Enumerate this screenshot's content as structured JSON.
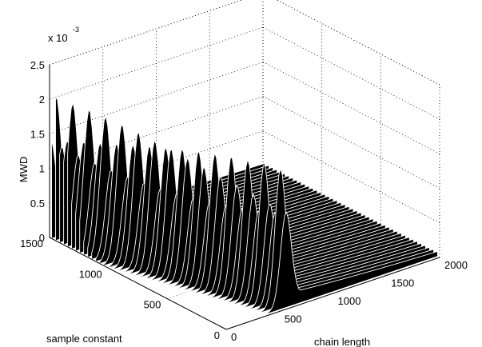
{
  "chart_data": {
    "type": "surface",
    "title": "",
    "zlabel": "MWD",
    "xlabel": "chain length",
    "ylabel": "sample constant",
    "z_multiplier": "x 10",
    "z_exponent": "-3",
    "xlim": [
      0,
      2000
    ],
    "ylim": [
      0,
      1500
    ],
    "zlim": [
      0,
      0.0025
    ],
    "x_ticks": [
      "0",
      "500",
      "1000",
      "1500",
      "2000"
    ],
    "y_ticks": [
      "0",
      "500",
      "1000",
      "1500"
    ],
    "z_ticks": [
      "0",
      "0.5",
      "1",
      "1.5",
      "2",
      "2.5"
    ],
    "grid": true,
    "surface_color": "#000000",
    "mesh_color": "#ffffff",
    "peaks": [
      {
        "sample_constant": 1450,
        "chain_length": 5,
        "mwd": 0.00197
      },
      {
        "sample_constant": 1350,
        "chain_length": 45,
        "mwd": 0.00191
      },
      {
        "sample_constant": 1250,
        "chain_length": 85,
        "mwd": 0.00185
      },
      {
        "sample_constant": 1150,
        "chain_length": 125,
        "mwd": 0.00179
      },
      {
        "sample_constant": 1050,
        "chain_length": 165,
        "mwd": 0.00173
      },
      {
        "sample_constant": 950,
        "chain_length": 205,
        "mwd": 0.00167
      },
      {
        "sample_constant": 850,
        "chain_length": 245,
        "mwd": 0.00161
      },
      {
        "sample_constant": 750,
        "chain_length": 285,
        "mwd": 0.00155
      },
      {
        "sample_constant": 650,
        "chain_length": 325,
        "mwd": 0.00149
      },
      {
        "sample_constant": 550,
        "chain_length": 365,
        "mwd": 0.00143
      },
      {
        "sample_constant": 450,
        "chain_length": 405,
        "mwd": 0.00137
      },
      {
        "sample_constant": 350,
        "chain_length": 445,
        "mwd": 0.00131
      }
    ]
  }
}
